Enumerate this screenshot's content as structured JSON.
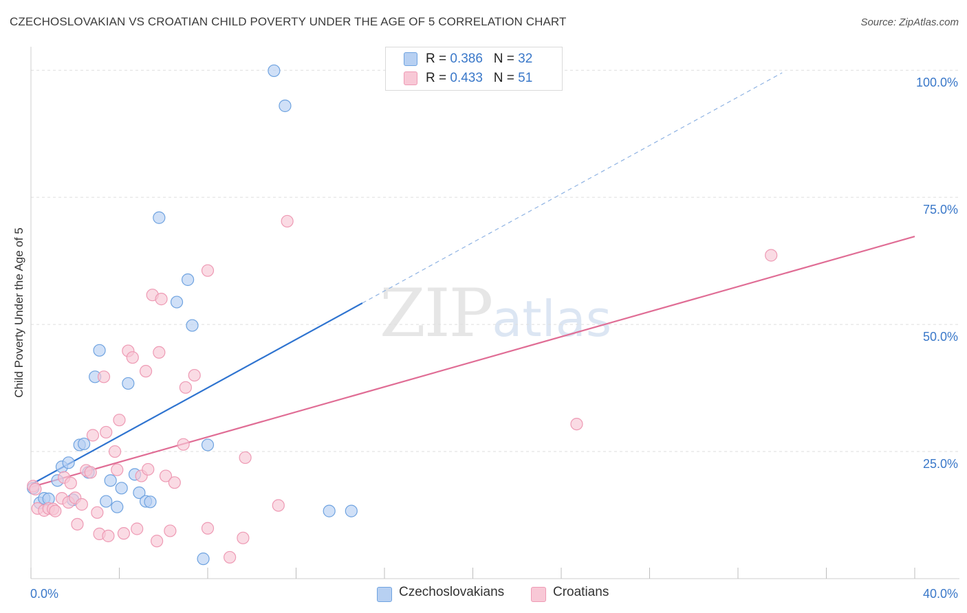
{
  "title": "CZECHOSLOVAKIAN VS CROATIAN CHILD POVERTY UNDER THE AGE OF 5 CORRELATION CHART",
  "source": "Source: ZipAtlas.com",
  "watermark": {
    "zip": "ZIP",
    "atlas": "atlas"
  },
  "legend": {
    "rows": [
      {
        "r_label": "R =",
        "r_value": "0.386",
        "n_label": "N =",
        "n_value": "32"
      },
      {
        "r_label": "R =",
        "r_value": "0.433",
        "n_label": "N =",
        "n_value": "51"
      }
    ]
  },
  "chart_data": {
    "type": "scatter",
    "title": "CZECHOSLOVAKIAN VS CROATIAN CHILD POVERTY UNDER THE AGE OF 5 CORRELATION CHART",
    "xlabel": "",
    "ylabel": "Child Poverty Under the Age of 5",
    "xlim": [
      0,
      40
    ],
    "ylim": [
      0,
      103
    ],
    "x_tick_labels": [
      "0.0%",
      "40.0%"
    ],
    "y_ticks": [
      25,
      50,
      75,
      100
    ],
    "y_tick_labels": [
      "25.0%",
      "50.0%",
      "75.0%",
      "100.0%"
    ],
    "x_minor_ticks": [
      0,
      4,
      8,
      12,
      16,
      20,
      24,
      28,
      32,
      36,
      40
    ],
    "grid": true,
    "legend_position": "top-center",
    "series": [
      {
        "name": "Czechoslovakians",
        "color": "#6fa3e0",
        "fill": "#b7d0f2",
        "line_color": "#2f74d0",
        "R": 0.386,
        "N": 32,
        "points": [
          [
            0.1,
            17.8
          ],
          [
            0.4,
            14.9
          ],
          [
            0.6,
            15.8
          ],
          [
            0.8,
            15.7
          ],
          [
            1.2,
            19.3
          ],
          [
            1.4,
            22.0
          ],
          [
            1.7,
            22.8
          ],
          [
            1.9,
            15.5
          ],
          [
            2.2,
            26.3
          ],
          [
            2.4,
            26.5
          ],
          [
            2.6,
            20.9
          ],
          [
            2.9,
            39.7
          ],
          [
            3.1,
            44.9
          ],
          [
            3.4,
            15.2
          ],
          [
            3.6,
            19.3
          ],
          [
            3.9,
            14.1
          ],
          [
            4.1,
            17.8
          ],
          [
            4.4,
            38.4
          ],
          [
            4.7,
            20.5
          ],
          [
            4.9,
            16.9
          ],
          [
            5.2,
            15.2
          ],
          [
            5.4,
            15.1
          ],
          [
            5.8,
            71.0
          ],
          [
            6.6,
            54.4
          ],
          [
            7.1,
            58.8
          ],
          [
            7.3,
            49.8
          ],
          [
            8.0,
            26.3
          ],
          [
            11.0,
            99.9
          ],
          [
            11.5,
            93.0
          ],
          [
            13.5,
            13.3
          ],
          [
            14.5,
            13.3
          ],
          [
            7.8,
            3.9
          ]
        ],
        "trend_solid": [
          [
            0.0,
            18.5
          ],
          [
            15.0,
            54.2
          ]
        ],
        "trend_dashed": [
          [
            15.0,
            54.2
          ],
          [
            34.0,
            99.5
          ]
        ]
      },
      {
        "name": "Croatians",
        "color": "#ee9ab4",
        "fill": "#f8c8d6",
        "line_color": "#e06d95",
        "R": 0.433,
        "N": 51,
        "points": [
          [
            0.1,
            18.2
          ],
          [
            0.3,
            13.8
          ],
          [
            0.6,
            13.4
          ],
          [
            0.8,
            13.8
          ],
          [
            1.0,
            13.7
          ],
          [
            1.1,
            13.3
          ],
          [
            1.4,
            15.8
          ],
          [
            1.5,
            19.9
          ],
          [
            1.7,
            15.0
          ],
          [
            1.8,
            18.8
          ],
          [
            2.0,
            15.9
          ],
          [
            2.1,
            10.7
          ],
          [
            2.3,
            14.6
          ],
          [
            2.5,
            21.3
          ],
          [
            2.7,
            20.9
          ],
          [
            2.8,
            28.2
          ],
          [
            3.0,
            13.0
          ],
          [
            3.1,
            8.8
          ],
          [
            3.3,
            39.7
          ],
          [
            3.4,
            28.8
          ],
          [
            3.5,
            8.4
          ],
          [
            3.8,
            25.0
          ],
          [
            3.9,
            21.4
          ],
          [
            4.0,
            31.2
          ],
          [
            4.2,
            8.9
          ],
          [
            4.4,
            44.8
          ],
          [
            4.6,
            43.5
          ],
          [
            4.8,
            9.8
          ],
          [
            5.0,
            20.2
          ],
          [
            5.2,
            40.8
          ],
          [
            5.3,
            21.5
          ],
          [
            5.5,
            55.8
          ],
          [
            5.7,
            7.4
          ],
          [
            5.8,
            44.5
          ],
          [
            5.9,
            55.0
          ],
          [
            6.1,
            20.2
          ],
          [
            6.3,
            9.4
          ],
          [
            6.5,
            18.9
          ],
          [
            6.9,
            26.4
          ],
          [
            7.0,
            37.6
          ],
          [
            7.4,
            40.0
          ],
          [
            8.0,
            60.6
          ],
          [
            8.0,
            9.9
          ],
          [
            9.0,
            4.2
          ],
          [
            9.6,
            8.0
          ],
          [
            9.7,
            23.8
          ],
          [
            11.2,
            14.4
          ],
          [
            11.6,
            70.3
          ],
          [
            24.7,
            30.4
          ],
          [
            33.5,
            63.6
          ],
          [
            0.2,
            17.6
          ]
        ],
        "trend_solid": [
          [
            0.0,
            18.0
          ],
          [
            40.0,
            67.3
          ]
        ]
      }
    ]
  },
  "bottom_legend": {
    "items": [
      "Czechoslovakians",
      "Croatians"
    ]
  }
}
